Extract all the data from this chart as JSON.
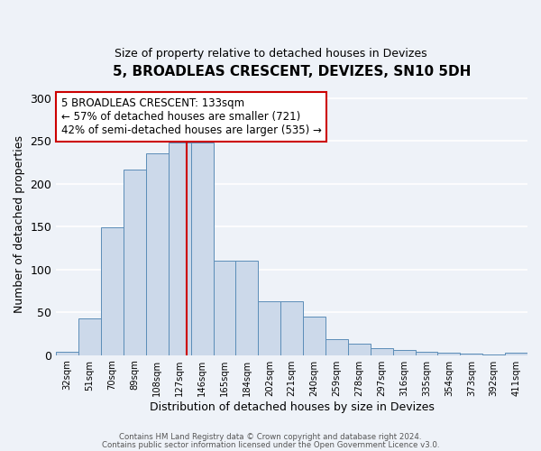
{
  "title": "5, BROADLEAS CRESCENT, DEVIZES, SN10 5DH",
  "subtitle": "Size of property relative to detached houses in Devizes",
  "xlabel": "Distribution of detached houses by size in Devizes",
  "ylabel": "Number of detached properties",
  "bar_labels": [
    "32sqm",
    "51sqm",
    "70sqm",
    "89sqm",
    "108sqm",
    "127sqm",
    "146sqm",
    "165sqm",
    "184sqm",
    "202sqm",
    "221sqm",
    "240sqm",
    "259sqm",
    "278sqm",
    "297sqm",
    "316sqm",
    "335sqm",
    "354sqm",
    "373sqm",
    "392sqm",
    "411sqm"
  ],
  "bar_values": [
    4,
    43,
    149,
    217,
    235,
    248,
    248,
    110,
    110,
    63,
    63,
    45,
    19,
    13,
    8,
    6,
    4,
    3,
    2,
    1,
    3
  ],
  "bar_color": "#ccd9ea",
  "bar_edge_color": "#5b8db8",
  "background_color": "#eef2f8",
  "ylim": [
    0,
    305
  ],
  "property_line_color": "#cc0000",
  "annotation_text": "5 BROADLEAS CRESCENT: 133sqm\n← 57% of detached houses are smaller (721)\n42% of semi-detached houses are larger (535) →",
  "annotation_box_color": "#ffffff",
  "annotation_box_edge": "#cc0000",
  "footnote1": "Contains HM Land Registry data © Crown copyright and database right 2024.",
  "footnote2": "Contains public sector information licensed under the Open Government Licence v3.0.",
  "title_fontsize": 11,
  "subtitle_fontsize": 9,
  "ylabel_text": "Number of detached properties"
}
